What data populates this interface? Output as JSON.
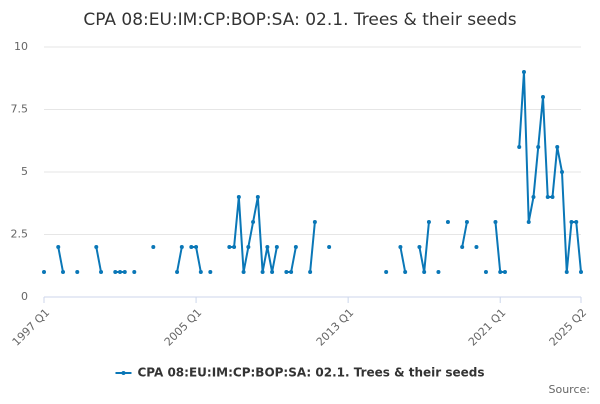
{
  "chart_data": {
    "type": "line",
    "title": "CPA 08:EU:IM:CP:BOP:SA: 02.1. Trees & their seeds",
    "source": "Source:",
    "categories": [
      "1997 Q1",
      null,
      null,
      null,
      null,
      null,
      null,
      null,
      null,
      null,
      null,
      null,
      null,
      null,
      null,
      null,
      null,
      null,
      null,
      null,
      null,
      null,
      null,
      null,
      null,
      null,
      null,
      null,
      null,
      null,
      null,
      null,
      "2005 Q1",
      null,
      null,
      null,
      null,
      null,
      null,
      null,
      null,
      null,
      null,
      null,
      null,
      null,
      null,
      null,
      null,
      null,
      null,
      null,
      null,
      null,
      null,
      null,
      null,
      null,
      null,
      null,
      null,
      null,
      null,
      null,
      "2013 Q1",
      null,
      null,
      null,
      null,
      null,
      null,
      null,
      null,
      null,
      null,
      null,
      null,
      null,
      null,
      null,
      null,
      null,
      null,
      null,
      null,
      null,
      null,
      null,
      null,
      null,
      null,
      null,
      null,
      null,
      null,
      null,
      "2021 Q1",
      null,
      null,
      null,
      null,
      null,
      null,
      null,
      null,
      null,
      null,
      null,
      null,
      null,
      null,
      null,
      null,
      "2025 Q2"
    ],
    "series": [
      {
        "name": "CPA 08:EU:IM:CP:BOP:SA: 02.1. Trees & their seeds",
        "color": "#0a77b7",
        "values": [
          1,
          null,
          null,
          2,
          1,
          null,
          null,
          1,
          null,
          null,
          null,
          2,
          1,
          null,
          null,
          1,
          1,
          1,
          null,
          1,
          null,
          null,
          null,
          2,
          null,
          null,
          null,
          null,
          1,
          2,
          null,
          2,
          2,
          1,
          null,
          1,
          null,
          null,
          null,
          2,
          2,
          4,
          1,
          2,
          3,
          4,
          1,
          2,
          1,
          2,
          null,
          1,
          1,
          2,
          null,
          null,
          1,
          3,
          null,
          null,
          2,
          null,
          null,
          null,
          null,
          null,
          null,
          null,
          null,
          null,
          null,
          null,
          1,
          null,
          null,
          2,
          1,
          null,
          null,
          2,
          1,
          3,
          null,
          1,
          null,
          3,
          null,
          null,
          2,
          3,
          null,
          2,
          null,
          1,
          null,
          3,
          1,
          1,
          null,
          null,
          6,
          9,
          3,
          4,
          6,
          8,
          4,
          4,
          6,
          5,
          1,
          3,
          3,
          1
        ]
      }
    ],
    "ylim": [
      0,
      10
    ],
    "yticks": [
      0,
      2.5,
      5,
      7.5,
      10
    ],
    "grid": true,
    "legend": "bottom"
  }
}
